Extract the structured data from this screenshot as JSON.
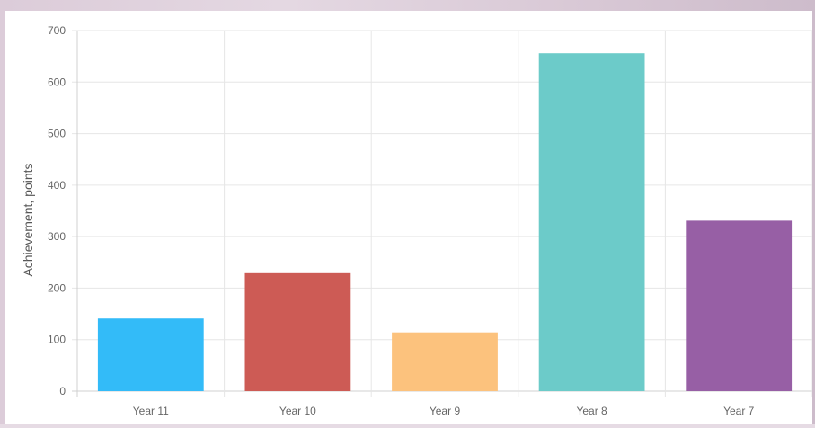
{
  "chart_data": {
    "type": "bar",
    "categories": [
      "Year 11",
      "Year 10",
      "Year 9",
      "Year 8",
      "Year 7"
    ],
    "values": [
      141,
      229,
      114,
      656,
      331
    ],
    "colors": [
      "#33bbf8",
      "#cd5b55",
      "#fcc27d",
      "#6ccbc9",
      "#975fa5"
    ],
    "title": "",
    "xlabel": "",
    "ylabel": "Achievement, points",
    "ylim": [
      0,
      700
    ],
    "yticks": [
      0,
      100,
      200,
      300,
      400,
      500,
      600,
      700
    ],
    "grid": true,
    "legend": "none"
  }
}
